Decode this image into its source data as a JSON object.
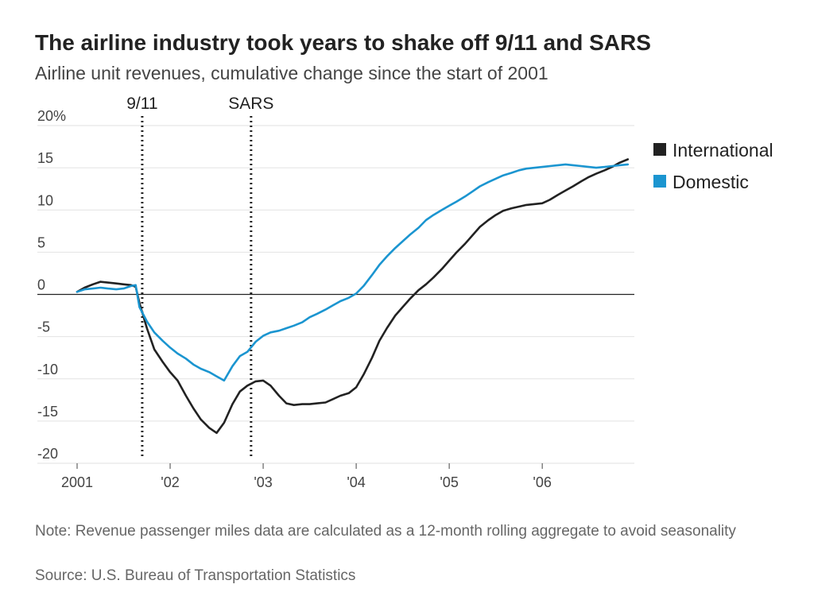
{
  "chart_data": {
    "type": "line",
    "title": "The airline industry took years to shake off 9/11 and SARS",
    "subtitle": "Airline unit revenues, cumulative change since the start of 2001",
    "xlabel": "",
    "ylabel": "",
    "xlim": [
      2001,
      2006.99
    ],
    "ylim": [
      -20,
      20
    ],
    "y_ticks": [
      {
        "value": 20,
        "label": "20%"
      },
      {
        "value": 15,
        "label": "15"
      },
      {
        "value": 10,
        "label": "10"
      },
      {
        "value": 5,
        "label": "5"
      },
      {
        "value": 0,
        "label": "0"
      },
      {
        "value": -5,
        "label": "-5"
      },
      {
        "value": -10,
        "label": "-10"
      },
      {
        "value": -15,
        "label": "-15"
      },
      {
        "value": -20,
        "label": "-20"
      }
    ],
    "x_ticks": [
      {
        "value": 2001,
        "label": "2001"
      },
      {
        "value": 2002,
        "label": "'02"
      },
      {
        "value": 2003,
        "label": "'03"
      },
      {
        "value": 2004,
        "label": "'04"
      },
      {
        "value": 2005,
        "label": "'05"
      },
      {
        "value": 2006,
        "label": "'06"
      }
    ],
    "grid": true,
    "legend_position": "right",
    "events": [
      {
        "label": "9/11",
        "x": 2001.7
      },
      {
        "label": "SARS",
        "x": 2002.87
      }
    ],
    "series": [
      {
        "name": "International",
        "color": "#222222",
        "points": [
          [
            2001.0,
            0.3
          ],
          [
            2001.08,
            0.8
          ],
          [
            2001.17,
            1.2
          ],
          [
            2001.25,
            1.5
          ],
          [
            2001.33,
            1.4
          ],
          [
            2001.42,
            1.3
          ],
          [
            2001.5,
            1.2
          ],
          [
            2001.58,
            1.1
          ],
          [
            2001.63,
            0.9
          ],
          [
            2001.67,
            -1.0
          ],
          [
            2001.75,
            -4.0
          ],
          [
            2001.83,
            -6.5
          ],
          [
            2001.92,
            -8.0
          ],
          [
            2002.0,
            -9.2
          ],
          [
            2002.08,
            -10.2
          ],
          [
            2002.17,
            -12.0
          ],
          [
            2002.25,
            -13.5
          ],
          [
            2002.33,
            -14.8
          ],
          [
            2002.42,
            -15.8
          ],
          [
            2002.5,
            -16.4
          ],
          [
            2002.58,
            -15.2
          ],
          [
            2002.67,
            -13.0
          ],
          [
            2002.75,
            -11.5
          ],
          [
            2002.83,
            -10.8
          ],
          [
            2002.92,
            -10.3
          ],
          [
            2003.0,
            -10.2
          ],
          [
            2003.08,
            -10.8
          ],
          [
            2003.17,
            -12.0
          ],
          [
            2003.25,
            -12.9
          ],
          [
            2003.33,
            -13.1
          ],
          [
            2003.42,
            -13.0
          ],
          [
            2003.5,
            -13.0
          ],
          [
            2003.58,
            -12.9
          ],
          [
            2003.67,
            -12.8
          ],
          [
            2003.75,
            -12.4
          ],
          [
            2003.83,
            -12.0
          ],
          [
            2003.92,
            -11.7
          ],
          [
            2004.0,
            -11.0
          ],
          [
            2004.08,
            -9.5
          ],
          [
            2004.17,
            -7.5
          ],
          [
            2004.25,
            -5.5
          ],
          [
            2004.33,
            -4.0
          ],
          [
            2004.42,
            -2.5
          ],
          [
            2004.5,
            -1.5
          ],
          [
            2004.58,
            -0.5
          ],
          [
            2004.67,
            0.5
          ],
          [
            2004.75,
            1.2
          ],
          [
            2004.83,
            2.0
          ],
          [
            2004.92,
            3.0
          ],
          [
            2005.0,
            4.0
          ],
          [
            2005.08,
            5.0
          ],
          [
            2005.17,
            6.0
          ],
          [
            2005.25,
            7.0
          ],
          [
            2005.33,
            8.0
          ],
          [
            2005.42,
            8.8
          ],
          [
            2005.5,
            9.4
          ],
          [
            2005.58,
            9.9
          ],
          [
            2005.67,
            10.2
          ],
          [
            2005.75,
            10.4
          ],
          [
            2005.83,
            10.6
          ],
          [
            2005.92,
            10.7
          ],
          [
            2006.0,
            10.8
          ],
          [
            2006.08,
            11.2
          ],
          [
            2006.17,
            11.8
          ],
          [
            2006.25,
            12.3
          ],
          [
            2006.33,
            12.8
          ],
          [
            2006.42,
            13.4
          ],
          [
            2006.5,
            13.9
          ],
          [
            2006.58,
            14.3
          ],
          [
            2006.67,
            14.7
          ],
          [
            2006.75,
            15.1
          ],
          [
            2006.83,
            15.6
          ],
          [
            2006.92,
            16.0
          ]
        ]
      },
      {
        "name": "Domestic",
        "color": "#1b95d0",
        "points": [
          [
            2001.0,
            0.3
          ],
          [
            2001.08,
            0.6
          ],
          [
            2001.17,
            0.7
          ],
          [
            2001.25,
            0.8
          ],
          [
            2001.33,
            0.7
          ],
          [
            2001.42,
            0.6
          ],
          [
            2001.5,
            0.7
          ],
          [
            2001.58,
            1.0
          ],
          [
            2001.63,
            1.1
          ],
          [
            2001.67,
            -1.5
          ],
          [
            2001.75,
            -3.2
          ],
          [
            2001.83,
            -4.5
          ],
          [
            2001.92,
            -5.5
          ],
          [
            2002.0,
            -6.3
          ],
          [
            2002.08,
            -7.0
          ],
          [
            2002.17,
            -7.6
          ],
          [
            2002.25,
            -8.3
          ],
          [
            2002.33,
            -8.8
          ],
          [
            2002.42,
            -9.2
          ],
          [
            2002.5,
            -9.7
          ],
          [
            2002.58,
            -10.2
          ],
          [
            2002.67,
            -8.5
          ],
          [
            2002.75,
            -7.3
          ],
          [
            2002.83,
            -6.8
          ],
          [
            2002.92,
            -5.6
          ],
          [
            2003.0,
            -4.9
          ],
          [
            2003.08,
            -4.5
          ],
          [
            2003.17,
            -4.3
          ],
          [
            2003.25,
            -4.0
          ],
          [
            2003.33,
            -3.7
          ],
          [
            2003.42,
            -3.3
          ],
          [
            2003.5,
            -2.7
          ],
          [
            2003.58,
            -2.3
          ],
          [
            2003.67,
            -1.8
          ],
          [
            2003.75,
            -1.3
          ],
          [
            2003.83,
            -0.8
          ],
          [
            2003.92,
            -0.4
          ],
          [
            2004.0,
            0.1
          ],
          [
            2004.08,
            1.0
          ],
          [
            2004.17,
            2.3
          ],
          [
            2004.25,
            3.5
          ],
          [
            2004.33,
            4.5
          ],
          [
            2004.42,
            5.5
          ],
          [
            2004.5,
            6.3
          ],
          [
            2004.58,
            7.1
          ],
          [
            2004.67,
            7.9
          ],
          [
            2004.75,
            8.8
          ],
          [
            2004.83,
            9.4
          ],
          [
            2004.92,
            10.0
          ],
          [
            2005.0,
            10.5
          ],
          [
            2005.08,
            11.0
          ],
          [
            2005.17,
            11.6
          ],
          [
            2005.25,
            12.2
          ],
          [
            2005.33,
            12.8
          ],
          [
            2005.42,
            13.3
          ],
          [
            2005.5,
            13.7
          ],
          [
            2005.58,
            14.1
          ],
          [
            2005.67,
            14.4
          ],
          [
            2005.75,
            14.7
          ],
          [
            2005.83,
            14.9
          ],
          [
            2005.92,
            15.0
          ],
          [
            2006.0,
            15.1
          ],
          [
            2006.08,
            15.2
          ],
          [
            2006.17,
            15.3
          ],
          [
            2006.25,
            15.4
          ],
          [
            2006.33,
            15.3
          ],
          [
            2006.42,
            15.2
          ],
          [
            2006.5,
            15.1
          ],
          [
            2006.58,
            15.0
          ],
          [
            2006.67,
            15.1
          ],
          [
            2006.75,
            15.2
          ],
          [
            2006.83,
            15.3
          ],
          [
            2006.92,
            15.4
          ]
        ]
      }
    ]
  },
  "note": "Note: Revenue passenger miles data are calculated as a 12-month rolling aggregate to avoid seasonality",
  "source": "Source: U.S. Bureau of Transportation Statistics"
}
